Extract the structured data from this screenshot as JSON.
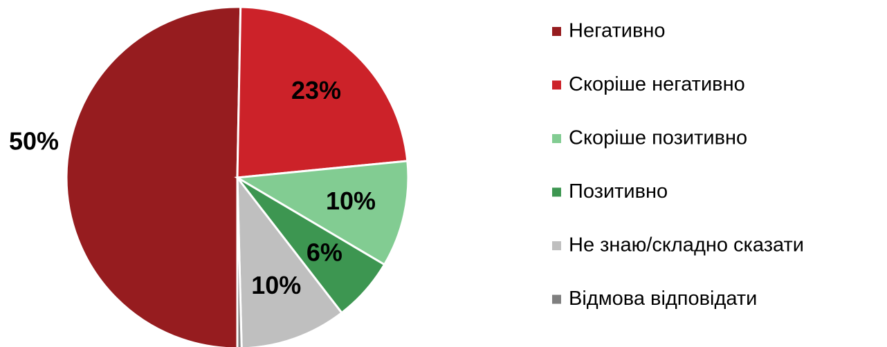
{
  "chart_data": {
    "type": "pie",
    "categories": [
      "Негативно",
      "Скоріше негативно",
      "Скоріше позитивно",
      "Позитивно",
      "Не знаю/складно сказати",
      "Відмова відповідати"
    ],
    "values": [
      50,
      23,
      10,
      6,
      10,
      0.4
    ],
    "value_labels": [
      "50%",
      "23%",
      "10%",
      "6%",
      "10%",
      null
    ],
    "colors": [
      "#961c1f",
      "#cc2229",
      "#82cc92",
      "#3d9651",
      "#bfbfbf",
      "#7f7f7f"
    ],
    "legend": "right"
  }
}
